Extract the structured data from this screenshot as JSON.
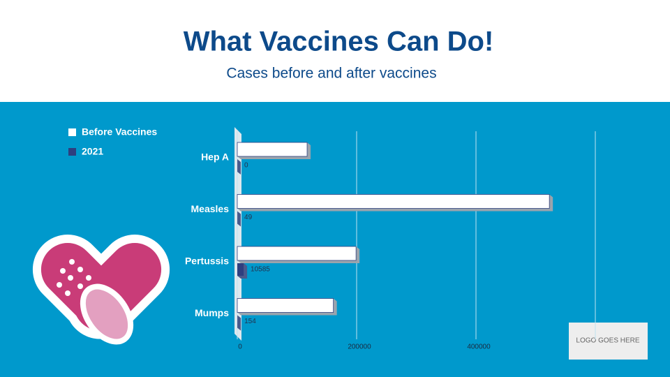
{
  "title": "What Vaccines Can Do!",
  "subtitle": "Cases before and after vaccines",
  "logo": "LOGO GOES HERE",
  "chart_data": {
    "type": "bar",
    "orientation": "horizontal",
    "categories": [
      "Hep A",
      "Measles",
      "Pertussis",
      "Mumps"
    ],
    "series": [
      {
        "name": "Before Vaccines",
        "color": "#ffffff",
        "values": [
          117000,
          523000,
          199000,
          161000
        ]
      },
      {
        "name": "2021",
        "color": "#2e3f7f",
        "values": [
          0,
          49,
          10585,
          154
        ]
      }
    ],
    "xlim": [
      0,
      600000
    ],
    "xticks": [
      0,
      200000,
      400000
    ],
    "grid": true,
    "legend": "top-left"
  }
}
